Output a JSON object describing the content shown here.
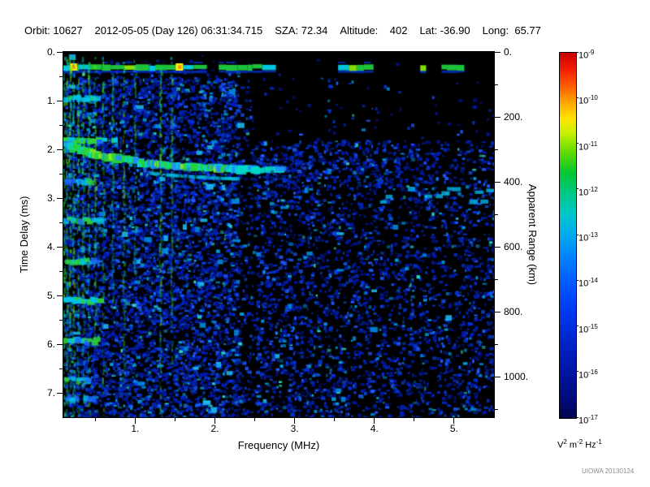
{
  "header": {
    "fields": [
      "Orbit: 10627",
      "2012-05-05 (Day 126) 06:31:34.715",
      "SZA: 72.34",
      "Altitude:    402",
      "Lat: -36.90",
      "Long:  65.77"
    ]
  },
  "watermark": "UIOWA 20130124",
  "chart_data": {
    "type": "heatmap",
    "subtype": "radar_sounder_ionogram_spectrogram",
    "xlabel": "Frequency (MHz)",
    "ylabel_left": "Time Delay (ms)",
    "ylabel_right": "Apparent Range (km)",
    "x_range_mhz": [
      0.1,
      5.5
    ],
    "y_range_ms": [
      0.0,
      7.5
    ],
    "x_ticks": [
      1,
      2,
      3,
      4,
      5
    ],
    "x_tick_labels": [
      "1.",
      "2.",
      "3.",
      "4.",
      "5."
    ],
    "y_ticks_ms": [
      0,
      1,
      2,
      3,
      4,
      5,
      6,
      7
    ],
    "y_tick_labels": [
      "0.",
      "1.",
      "2.",
      "3.",
      "4.",
      "5.",
      "6.",
      "7."
    ],
    "right_ticks_km": [
      0,
      200,
      400,
      600,
      800,
      1000
    ],
    "right_tick_labels": [
      "0.",
      "200.",
      "400.",
      "600.",
      "800.",
      "1000."
    ],
    "background_color": "#000000",
    "colorbar": {
      "scale": "log",
      "tick_exponents": [
        -9,
        -10,
        -11,
        -12,
        -13,
        -14,
        -15,
        -16,
        -17
      ],
      "units_parts": [
        [
          "V",
          "2"
        ],
        [
          "m",
          "-2"
        ],
        [
          "Hz",
          "-1"
        ]
      ],
      "colormap_stops": [
        [
          "#c80000",
          0
        ],
        [
          "#f01800",
          4
        ],
        [
          "#ff5a00",
          9
        ],
        [
          "#ff9c00",
          13
        ],
        [
          "#ffe400",
          18
        ],
        [
          "#c8f000",
          22
        ],
        [
          "#64dc00",
          27
        ],
        [
          "#00c832",
          33
        ],
        [
          "#00c88c",
          39
        ],
        [
          "#00c8c8",
          44
        ],
        [
          "#00aaf0",
          50
        ],
        [
          "#0082ff",
          56
        ],
        [
          "#005aff",
          63
        ],
        [
          "#0038f0",
          71
        ],
        [
          "#0022c8",
          80
        ],
        [
          "#0014a0",
          88
        ],
        [
          "#000a78",
          95
        ],
        [
          "#000450",
          100
        ]
      ]
    },
    "features": {
      "surface_band": {
        "t_ms": 0.3,
        "hotspots_mhz": [
          0.22,
          1.55
        ]
      },
      "plasma_lines": [
        {
          "f": 0.11,
          "i": 1.0,
          "len": 1.0
        },
        {
          "f": 0.145,
          "i": 0.75,
          "len": 1.0
        },
        {
          "f": 0.185,
          "i": 0.9,
          "len": 1.0
        },
        {
          "f": 0.23,
          "i": 0.65,
          "len": 1.0
        },
        {
          "f": 0.285,
          "i": 0.8,
          "len": 1.0
        },
        {
          "f": 0.35,
          "i": 0.6,
          "len": 0.95
        },
        {
          "f": 0.42,
          "i": 0.7,
          "len": 1.0
        },
        {
          "f": 0.5,
          "i": 0.5,
          "len": 0.8
        },
        {
          "f": 0.6,
          "i": 0.55,
          "len": 1.0
        },
        {
          "f": 0.72,
          "i": 0.4,
          "len": 0.7
        },
        {
          "f": 0.86,
          "i": 0.35,
          "len": 0.9
        },
        {
          "f": 1.0,
          "i": 0.3,
          "len": 0.6
        },
        {
          "f": 1.32,
          "i": 0.7,
          "len": 1.0
        },
        {
          "f": 1.46,
          "i": 0.35,
          "len": 0.85
        }
      ],
      "low_freq_streaks": [
        {
          "t": 0.93,
          "fmax": 0.5,
          "i": 0.55
        },
        {
          "t": 1.8,
          "fmax": 0.75,
          "i": 1.0
        },
        {
          "t": 2.63,
          "fmax": 0.45,
          "i": 0.5
        },
        {
          "t": 3.43,
          "fmax": 0.55,
          "i": 0.6
        },
        {
          "t": 4.27,
          "fmax": 0.5,
          "i": 0.5
        },
        {
          "t": 5.07,
          "fmax": 0.6,
          "i": 0.9
        },
        {
          "t": 5.9,
          "fmax": 0.5,
          "i": 0.7
        },
        {
          "t": 6.7,
          "fmax": 0.4,
          "i": 0.45
        },
        {
          "t": 7.1,
          "fmax": 0.45,
          "i": 0.5
        }
      ],
      "echo_trace": {
        "t_start_ms": 1.88,
        "rise_ms": 0.56,
        "k": 1.15,
        "f_end_mhz": 2.85
      },
      "hf_dashes": {
        "t_ms": 2.9,
        "f_start_mhz": 4.0,
        "f_end_mhz": 5.5
      }
    },
    "render": {
      "seed": 20130124,
      "noise_attempts": 30000
    }
  }
}
